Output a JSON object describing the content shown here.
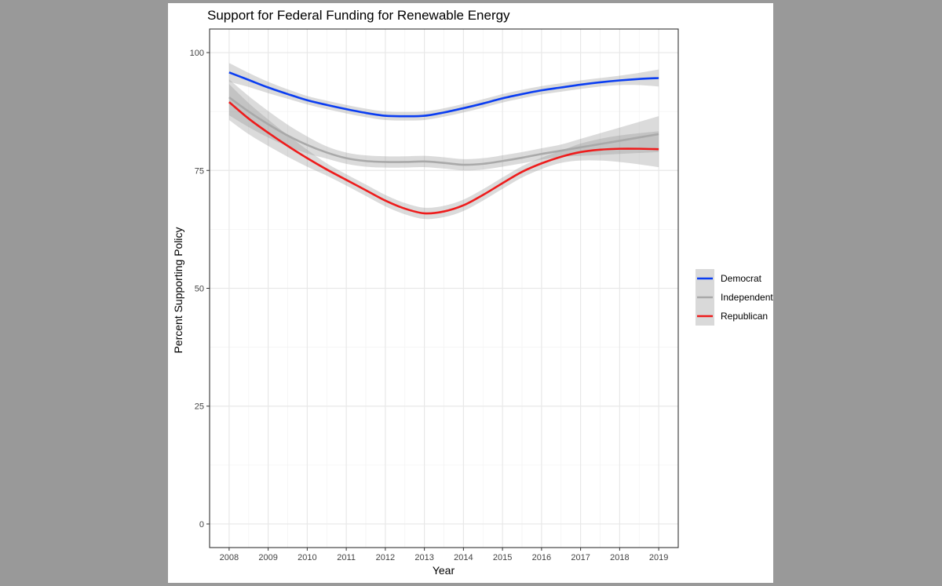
{
  "chart_data": {
    "type": "line",
    "title": "Support for Federal Funding for Renewable Energy",
    "xlabel": "Year",
    "ylabel": "Percent Supporting Policy",
    "x_ticks": [
      "2008",
      "2009",
      "2010",
      "2011",
      "2012",
      "2013",
      "2014",
      "2015",
      "2016",
      "2017",
      "2018",
      "2019"
    ],
    "y_ticks": [
      "0",
      "25",
      "50",
      "75",
      "100"
    ],
    "xlim": [
      2007.5,
      2019.5
    ],
    "ylim": [
      -5,
      105
    ],
    "grid": true,
    "legend_position": "right",
    "series": [
      {
        "name": "Democrat",
        "color": "#0a3df2",
        "x": [
          2008,
          2008.5,
          2009,
          2009.5,
          2010,
          2010.5,
          2011,
          2011.5,
          2012,
          2012.5,
          2013,
          2013.5,
          2014,
          2014.5,
          2015,
          2015.5,
          2016,
          2016.5,
          2017,
          2017.5,
          2018,
          2018.5,
          2019
        ],
        "y": [
          95.8,
          94.2,
          92.6,
          91.2,
          89.9,
          88.9,
          88.0,
          87.2,
          86.6,
          86.5,
          86.6,
          87.3,
          88.2,
          89.2,
          90.3,
          91.2,
          92.0,
          92.6,
          93.2,
          93.7,
          94.1,
          94.4,
          94.6
        ],
        "ci": [
          2.0,
          1.5,
          1.2,
          1.0,
          0.9,
          0.9,
          0.9,
          0.9,
          0.9,
          0.9,
          0.9,
          0.9,
          0.9,
          0.9,
          0.9,
          0.9,
          0.9,
          0.9,
          0.9,
          0.9,
          1.0,
          1.3,
          1.8
        ]
      },
      {
        "name": "Independent",
        "color": "#a9a9a9",
        "x": [
          2008,
          2008.5,
          2009,
          2009.5,
          2010,
          2010.5,
          2011,
          2011.5,
          2012,
          2012.5,
          2013,
          2013.5,
          2014,
          2014.5,
          2015,
          2015.5,
          2016,
          2016.5,
          2017,
          2017.5,
          2018,
          2018.5,
          2019
        ],
        "y": [
          90.5,
          87.5,
          84.8,
          82.4,
          80.4,
          78.8,
          77.6,
          77.0,
          76.8,
          76.8,
          76.9,
          76.6,
          76.2,
          76.4,
          77.0,
          77.7,
          78.5,
          79.2,
          79.9,
          80.6,
          81.3,
          82.0,
          82.7
        ]
      },
      {
        "name": "Republican",
        "color": "#ee1c1c",
        "x": [
          2008,
          2008.5,
          2009,
          2009.5,
          2010,
          2010.5,
          2011,
          2011.5,
          2012,
          2012.5,
          2013,
          2013.5,
          2014,
          2014.5,
          2015,
          2015.5,
          2016,
          2016.5,
          2017,
          2017.5,
          2018,
          2018.5,
          2019
        ],
        "y": [
          89.5,
          86.0,
          83.0,
          80.2,
          77.6,
          75.2,
          73.0,
          70.8,
          68.6,
          66.9,
          65.9,
          66.3,
          67.6,
          69.8,
          72.3,
          74.7,
          76.5,
          77.9,
          78.9,
          79.4,
          79.6,
          79.6,
          79.5
        ]
      }
    ]
  }
}
